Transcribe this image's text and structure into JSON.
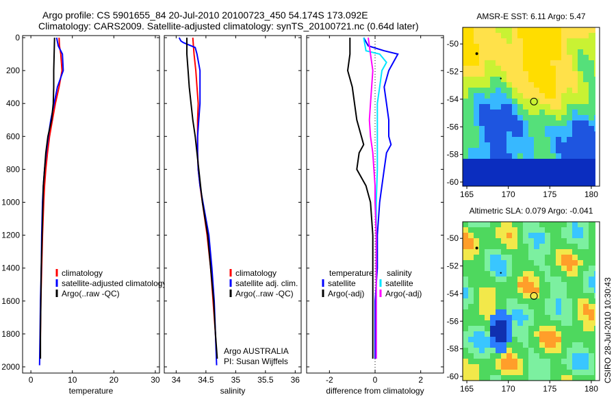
{
  "header": {
    "title_line1": "Argo profile: CS 5901655_84 20-Jul-2010 20100723_450 54.174S 173.092E",
    "title_line2": "Climatology: CARS2009. Satellite-adjusted climatology: synTS_20100721.nc (0.64d later)"
  },
  "colors": {
    "climatology": "#ff0000",
    "satellite": "#0000ff",
    "argo": "#000000",
    "sat_salinity": "#00e5ff",
    "argo_salinity_diff": "#ff00ff"
  },
  "chart_data": [
    {
      "type": "line",
      "name": "temperature-panel",
      "xlabel": "temperature",
      "ylabel": "",
      "xlim": [
        -2,
        31
      ],
      "ylim": [
        2050,
        0
      ],
      "y_reversed": true,
      "xticks": [
        0,
        10,
        20,
        30
      ],
      "yticks": [
        0,
        200,
        400,
        600,
        800,
        1000,
        1200,
        1400,
        1600,
        1800,
        2000
      ],
      "legend": [
        "climatology",
        "satellite-adjusted climatology",
        "Argo(..raw -QC)"
      ],
      "legend_position": "lower-right",
      "series": [
        {
          "name": "climatology",
          "color": "#ff0000",
          "points": [
            [
              6.8,
              0
            ],
            [
              6.9,
              50
            ],
            [
              7.2,
              100
            ],
            [
              7.5,
              200
            ],
            [
              6.8,
              300
            ],
            [
              5.9,
              400
            ],
            [
              5.2,
              500
            ],
            [
              4.5,
              600
            ],
            [
              4.0,
              700
            ],
            [
              3.6,
              800
            ],
            [
              3.3,
              900
            ],
            [
              3.1,
              1000
            ],
            [
              2.8,
              1200
            ],
            [
              2.6,
              1400
            ],
            [
              2.4,
              1600
            ],
            [
              2.3,
              1800
            ],
            [
              2.2,
              1950
            ]
          ]
        },
        {
          "name": "satellite-adjusted climatology",
          "color": "#0000ff",
          "points": [
            [
              6.2,
              0
            ],
            [
              6.6,
              50
            ],
            [
              7.6,
              100
            ],
            [
              7.8,
              200
            ],
            [
              6.4,
              300
            ],
            [
              5.6,
              400
            ],
            [
              4.8,
              500
            ],
            [
              4.2,
              600
            ],
            [
              3.7,
              700
            ],
            [
              3.3,
              800
            ],
            [
              3.0,
              900
            ],
            [
              2.8,
              1000
            ],
            [
              2.6,
              1200
            ],
            [
              2.5,
              1400
            ],
            [
              2.3,
              1600
            ],
            [
              2.2,
              1800
            ],
            [
              2.1,
              1990
            ]
          ]
        },
        {
          "name": "Argo(..raw -QC)",
          "color": "#000000",
          "points": [
            [
              5.7,
              0
            ],
            [
              5.6,
              100
            ],
            [
              5.5,
              200
            ],
            [
              5.5,
              300
            ],
            [
              5.4,
              400
            ],
            [
              5.0,
              500
            ],
            [
              4.1,
              600
            ],
            [
              3.6,
              700
            ],
            [
              3.3,
              800
            ],
            [
              3.0,
              900
            ],
            [
              2.9,
              1000
            ],
            [
              2.7,
              1200
            ],
            [
              2.5,
              1400
            ],
            [
              2.4,
              1600
            ],
            [
              2.3,
              1800
            ],
            [
              2.3,
              1950
            ]
          ]
        }
      ]
    },
    {
      "type": "line",
      "name": "salinity-panel",
      "xlabel": "salinity",
      "ylabel": "",
      "xlim": [
        33.8,
        36.1
      ],
      "ylim": [
        2050,
        0
      ],
      "y_reversed": true,
      "xticks": [
        34,
        34.5,
        35,
        35.5,
        36
      ],
      "legend": [
        "climatology",
        "satellite adj. clim.",
        "Argo(..raw -QC)"
      ],
      "legend_position": "lower-right",
      "annotations": [
        "Argo AUSTRALIA",
        "PI: Susan Wijffels"
      ],
      "series": [
        {
          "name": "climatology",
          "color": "#ff0000",
          "points": [
            [
              34.28,
              0
            ],
            [
              34.3,
              100
            ],
            [
              34.33,
              200
            ],
            [
              34.35,
              300
            ],
            [
              34.37,
              400
            ],
            [
              34.36,
              500
            ],
            [
              34.36,
              600
            ],
            [
              34.36,
              700
            ],
            [
              34.37,
              800
            ],
            [
              34.4,
              900
            ],
            [
              34.44,
              1000
            ],
            [
              34.52,
              1200
            ],
            [
              34.58,
              1400
            ],
            [
              34.62,
              1600
            ],
            [
              34.66,
              1800
            ],
            [
              34.68,
              1950
            ]
          ]
        },
        {
          "name": "satellite adj. clim.",
          "color": "#0000ff",
          "points": [
            [
              34.05,
              0
            ],
            [
              34.08,
              20
            ],
            [
              34.12,
              30
            ],
            [
              34.32,
              60
            ],
            [
              34.35,
              100
            ],
            [
              34.4,
              200
            ],
            [
              34.4,
              300
            ],
            [
              34.4,
              400
            ],
            [
              34.38,
              500
            ],
            [
              34.36,
              600
            ],
            [
              34.36,
              700
            ],
            [
              34.37,
              800
            ],
            [
              34.4,
              900
            ],
            [
              34.45,
              1000
            ],
            [
              34.55,
              1200
            ],
            [
              34.6,
              1400
            ],
            [
              34.64,
              1600
            ],
            [
              34.66,
              1800
            ],
            [
              34.68,
              1990
            ]
          ]
        },
        {
          "name": "Argo(..raw -QC)",
          "color": "#000000",
          "points": [
            [
              34.18,
              0
            ],
            [
              34.18,
              100
            ],
            [
              34.2,
              200
            ],
            [
              34.22,
              300
            ],
            [
              34.25,
              400
            ],
            [
              34.28,
              500
            ],
            [
              34.32,
              600
            ],
            [
              34.35,
              700
            ],
            [
              34.38,
              800
            ],
            [
              34.41,
              900
            ],
            [
              34.44,
              1000
            ],
            [
              34.53,
              1200
            ],
            [
              34.58,
              1400
            ],
            [
              34.63,
              1600
            ],
            [
              34.66,
              1800
            ],
            [
              34.69,
              1950
            ]
          ]
        }
      ]
    },
    {
      "type": "line",
      "name": "difference-panel",
      "xlabel": "difference from climatology",
      "ylabel": "",
      "xlim": [
        -3,
        3
      ],
      "ylim": [
        2050,
        0
      ],
      "y_reversed": true,
      "xticks": [
        -2,
        0,
        2
      ],
      "legend": [
        "temperature",
        "satellite",
        "Argo(-adj)",
        "salinity",
        "satellite",
        "Argo(-adj)"
      ],
      "legend_position": "lower-right",
      "series": [
        {
          "name": "satellite temperature",
          "color": "#0000ff",
          "points": [
            [
              -0.5,
              0
            ],
            [
              -0.3,
              50
            ],
            [
              0.4,
              80
            ],
            [
              1.0,
              100
            ],
            [
              0.6,
              200
            ],
            [
              0.4,
              300
            ],
            [
              0.5,
              400
            ],
            [
              0.6,
              500
            ],
            [
              0.6,
              600
            ],
            [
              0.7,
              650
            ],
            [
              0.5,
              700
            ],
            [
              0.4,
              800
            ],
            [
              0.3,
              900
            ],
            [
              0.2,
              1000
            ],
            [
              0.1,
              1200
            ],
            [
              0.1,
              1400
            ],
            [
              0.0,
              1600
            ],
            [
              0.0,
              1800
            ],
            [
              0.0,
              1950
            ]
          ]
        },
        {
          "name": "Argo(-adj) temperature",
          "color": "#000000",
          "points": [
            [
              -1.1,
              0
            ],
            [
              -1.1,
              100
            ],
            [
              -1.2,
              200
            ],
            [
              -1.0,
              300
            ],
            [
              -0.9,
              400
            ],
            [
              -0.8,
              500
            ],
            [
              -0.6,
              600
            ],
            [
              -0.5,
              650
            ],
            [
              -0.7,
              700
            ],
            [
              -0.8,
              800
            ],
            [
              -0.4,
              900
            ],
            [
              -0.2,
              1000
            ],
            [
              -0.1,
              1200
            ],
            [
              -0.1,
              1400
            ],
            [
              -0.1,
              1600
            ],
            [
              -0.1,
              1800
            ],
            [
              -0.1,
              1950
            ]
          ]
        },
        {
          "name": "satellite salinity",
          "color": "#00e5ff",
          "points": [
            [
              -0.5,
              0
            ],
            [
              -0.4,
              80
            ],
            [
              0.2,
              100
            ],
            [
              0.5,
              150
            ],
            [
              0.3,
              200
            ],
            [
              0.2,
              300
            ],
            [
              0.1,
              400
            ],
            [
              0.1,
              500
            ],
            [
              0.1,
              600
            ],
            [
              0.1,
              800
            ],
            [
              0.05,
              1000
            ],
            [
              0.05,
              1200
            ],
            [
              0.05,
              1400
            ],
            [
              0.05,
              1600
            ],
            [
              0.05,
              1800
            ],
            [
              0.05,
              1950
            ]
          ]
        },
        {
          "name": "Argo(-adj) salinity",
          "color": "#ff00ff",
          "points": [
            [
              -0.3,
              0
            ],
            [
              -0.2,
              100
            ],
            [
              -0.1,
              200
            ],
            [
              -0.15,
              300
            ],
            [
              -0.2,
              400
            ],
            [
              -0.25,
              500
            ],
            [
              -0.2,
              600
            ],
            [
              -0.1,
              700
            ],
            [
              -0.05,
              800
            ],
            [
              0.0,
              900
            ],
            [
              0.0,
              1000
            ],
            [
              0.05,
              1200
            ],
            [
              0.05,
              1400
            ],
            [
              0.05,
              1600
            ],
            [
              0.05,
              1800
            ],
            [
              0.05,
              1950
            ]
          ]
        }
      ]
    },
    {
      "type": "heatmap",
      "name": "sst-map",
      "title": "AMSR-E SST: 6.11 Argo: 5.47",
      "xlim": [
        164.5,
        181
      ],
      "ylim": [
        -60.3,
        -48.8
      ],
      "xticks": [
        165,
        170,
        175,
        180
      ],
      "yticks": [
        -50,
        -52,
        -54,
        -56,
        -58,
        -60
      ],
      "marker": {
        "x": 173.09,
        "y": -54.17
      }
    },
    {
      "type": "heatmap",
      "name": "sla-map",
      "title": "Altimetric SLA: 0.079 Argo: -0.041",
      "xlim": [
        164.5,
        181
      ],
      "ylim": [
        -60.3,
        -48.8
      ],
      "xticks": [
        165,
        170,
        175,
        180
      ],
      "yticks": [
        -50,
        -52,
        -54,
        -56,
        -58,
        -60
      ],
      "marker": {
        "x": 173.09,
        "y": -54.17
      }
    }
  ],
  "footer": {
    "credit": "CSIRO 28-Jul-2010 10:30:43"
  }
}
